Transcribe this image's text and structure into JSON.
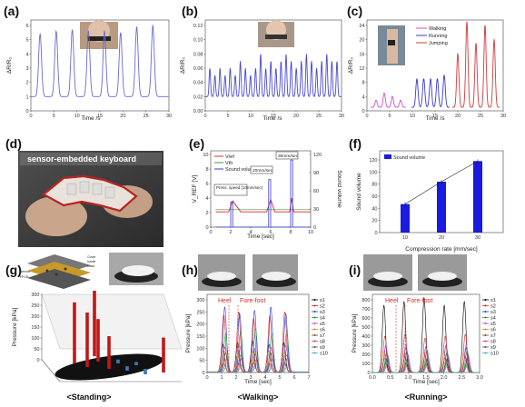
{
  "panels": {
    "a": {
      "letter": "(a)",
      "xlabel": "Time /s",
      "ylabel": "ΔR/R₀",
      "yticks": [
        "0",
        "1",
        "2",
        "3",
        "4",
        "5",
        "6"
      ],
      "xticks": [
        "0",
        "5",
        "10",
        "15",
        "20",
        "25",
        "30"
      ]
    },
    "b": {
      "letter": "(b)",
      "xlabel": "Time /s",
      "ylabel": "ΔR/R₀",
      "yticks": [
        "0.00",
        "0.02",
        "0.04",
        "0.06",
        "0.08",
        "0.10",
        "0.12"
      ],
      "xticks": [
        "0",
        "5",
        "10",
        "15",
        "20",
        "25",
        "30"
      ]
    },
    "c": {
      "letter": "(c)",
      "xlabel": "Time /s",
      "ylabel": "ΔR/R₀",
      "yticks": [
        "0",
        "4",
        "8",
        "12",
        "16",
        "20",
        "24"
      ],
      "xticks": [
        "0",
        "5",
        "10",
        "15",
        "20",
        "25",
        "30"
      ],
      "legend": [
        "Walking",
        "Running",
        "Jumping"
      ],
      "colors": [
        "#d04fd0",
        "#3b3bd0",
        "#d03b3b"
      ]
    },
    "d": {
      "letter": "(d)",
      "photo_caption": "sensor-embedded keyboard"
    },
    "e": {
      "letter": "(e)",
      "xlabel": "Time [sec]",
      "ylabel_left": "V_REF [V]",
      "ylabel_right": "Sound volume",
      "yticks": [
        "0",
        "2",
        "4",
        "6",
        "8",
        "10"
      ],
      "yticks_right": [
        "0",
        "30",
        "60",
        "90",
        "120"
      ],
      "xticks": [
        "0",
        "2",
        "4",
        "6",
        "8",
        "10"
      ],
      "legend": [
        "Vref",
        "Vth",
        "Sound volume"
      ],
      "annotations": [
        "Press. speed (10mm/sec)",
        "20mm/sec",
        "30mm/sec"
      ]
    },
    "f": {
      "letter": "(f)",
      "xlabel": "Compression rate [mm/sec]",
      "ylabel": "Sound volume",
      "yticks": [
        "0",
        "20",
        "40",
        "60",
        "80",
        "100",
        "120"
      ],
      "legend": "Sound volume"
    },
    "g": {
      "letter": "(g)",
      "ylabel": "Pressure [kPa]",
      "yticks": [
        "0",
        "50",
        "100",
        "150",
        "200",
        "250",
        "300"
      ],
      "caption": "<Standing>",
      "inset_labels": [
        "Cover",
        "Insole",
        "Sensor",
        "FPCB",
        "stack"
      ]
    },
    "h": {
      "letter": "(h)",
      "xlabel": "Time [sec]",
      "ylabel": "Pressure [kPa]",
      "yticks": [
        "0",
        "50",
        "100",
        "150",
        "200",
        "250",
        "300"
      ],
      "xticks": [
        "0",
        "1",
        "2",
        "3",
        "4",
        "5",
        "6",
        "7"
      ],
      "caption": "<Walking>",
      "heel": "Heel",
      "forefoot": "Fore-foot"
    },
    "i": {
      "letter": "(i)",
      "xlabel": "Time [sec]",
      "ylabel": "Pressure [kPa]",
      "yticks": [
        "0",
        "100",
        "200",
        "300",
        "400",
        "500",
        "600",
        "700",
        "800"
      ],
      "xticks": [
        "0.0",
        "0.5",
        "1.0",
        "1.5",
        "2.0",
        "2.5",
        "3.0"
      ],
      "caption": "<Running>",
      "heel": "Heel",
      "forefoot": "Fore-foot"
    }
  },
  "sensor_legend": [
    "s1",
    "s2",
    "s3",
    "s4",
    "s5",
    "s6",
    "s7",
    "s8",
    "s9",
    "s10"
  ],
  "sensor_colors": [
    "#000000",
    "#e0262c",
    "#2b36d9",
    "#1b9c3a",
    "#b04fd0",
    "#e08a1e",
    "#7a4a2a",
    "#d0389a",
    "#555555",
    "#35b0c8"
  ],
  "chart_data": [
    {
      "panel": "a",
      "type": "line",
      "xlim": [
        0,
        30
      ],
      "ylim": [
        0,
        7
      ],
      "x": [
        2,
        5.5,
        9,
        12.5,
        16,
        19.5,
        23,
        26.5
      ],
      "peaks": [
        5.4,
        5.6,
        5.7,
        5.6,
        5.6,
        5.5,
        5.9,
        6.0
      ],
      "baseline": 1.0
    },
    {
      "panel": "b",
      "type": "line",
      "xlim": [
        0,
        30
      ],
      "ylim": [
        0,
        0.12
      ],
      "peaks": [
        0.06,
        0.05,
        0.06,
        0.05,
        0.06,
        0.05,
        0.07,
        0.06,
        0.05,
        0.06,
        0.08,
        0.06,
        0.07,
        0.06,
        0.07,
        0.08,
        0.07,
        0.06,
        0.07,
        0.08,
        0.07,
        0.06,
        0.07,
        0.08,
        0.07,
        0.07
      ],
      "baseline": 0.02
    },
    {
      "panel": "c",
      "type": "line",
      "xlim": [
        0,
        30
      ],
      "ylim": [
        0,
        26
      ],
      "series": [
        {
          "name": "Walking",
          "x": [
            2,
            3.8,
            5.6,
            7.4
          ],
          "values": [
            3,
            5,
            4,
            3
          ]
        },
        {
          "name": "Running",
          "x": [
            11,
            12.5,
            14,
            15.5,
            17
          ],
          "values": [
            9,
            9,
            9,
            9,
            10
          ]
        },
        {
          "name": "Jumping",
          "x": [
            20,
            22,
            24,
            26,
            28
          ],
          "values": [
            16,
            25,
            19,
            24,
            20
          ]
        }
      ]
    },
    {
      "panel": "e",
      "type": "line",
      "xlim": [
        0,
        10
      ],
      "ylim": [
        0,
        10
      ],
      "y2lim": [
        0,
        130
      ],
      "series": [
        {
          "name": "Vref",
          "x": [
            0.5,
            1.8,
            2.2,
            3.0,
            5.6,
            6.0,
            6.4,
            7.9,
            8.1,
            8.3,
            10
          ],
          "values": [
            2.1,
            2.1,
            3.6,
            2.1,
            2.1,
            3.8,
            2.1,
            2.1,
            4.0,
            2.1,
            2.1
          ]
        },
        {
          "name": "Vth",
          "values": [
            2.4
          ]
        },
        {
          "name": "Sound volume",
          "x": [
            2.1,
            5.9,
            8.1
          ],
          "values": [
            45,
            85,
            120
          ]
        }
      ]
    },
    {
      "panel": "f",
      "type": "bar",
      "categories": [
        "10",
        "20",
        "30"
      ],
      "values": [
        47,
        84,
        118
      ],
      "ylim": [
        0,
        125
      ]
    },
    {
      "panel": "g",
      "type": "bar",
      "title": "<Standing>",
      "values": [
        280,
        250,
        195,
        150,
        300,
        160,
        20,
        15,
        25,
        18
      ],
      "ylim": [
        0,
        300
      ]
    },
    {
      "panel": "h",
      "type": "line",
      "xlim": [
        0,
        7.5
      ],
      "ylim": [
        0,
        320
      ],
      "cycle_x": [
        1.3,
        2.4,
        3.5,
        4.7,
        5.8
      ],
      "sensor_peaks": [
        130,
        250,
        270,
        180,
        60,
        90,
        40,
        110,
        80,
        30
      ]
    },
    {
      "panel": "i",
      "type": "line",
      "xlim": [
        0,
        3.2
      ],
      "ylim": [
        0,
        850
      ],
      "cycle_x": [
        0.4,
        1.0,
        1.6,
        2.2,
        2.8
      ],
      "sensor_peaks": [
        820,
        420,
        300,
        250,
        200,
        230,
        180,
        310,
        150,
        120
      ]
    }
  ]
}
